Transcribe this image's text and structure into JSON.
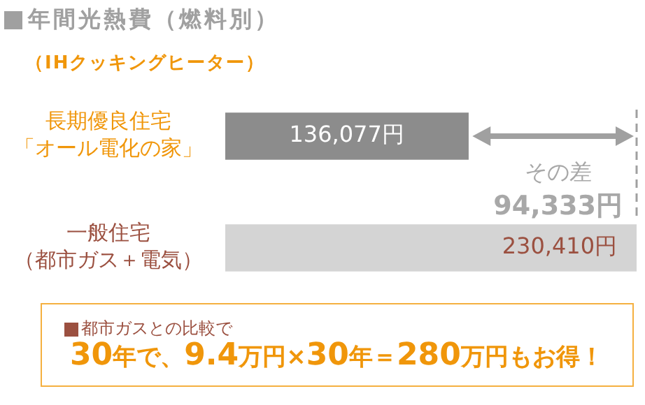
{
  "chart_data": {
    "type": "bar",
    "orientation": "horizontal",
    "title": "年間光熱費（燃料別）",
    "subtitle": "（IHクッキングヒーター）",
    "categories": [
      "長期優良住宅「オール電化の家」",
      "一般住宅（都市ガス＋電気）"
    ],
    "values": [
      136077,
      230410
    ],
    "colors": [
      "#8c8c8c",
      "#d4d4d4"
    ],
    "value_labels": [
      "136,077円",
      "230,410円"
    ],
    "annotations": [
      "その差",
      "94,333円",
      "都市ガスとの比較で",
      "30年で、9.4万円×30年＝280万円もお得！"
    ],
    "legend": false,
    "grid": false
  }
}
